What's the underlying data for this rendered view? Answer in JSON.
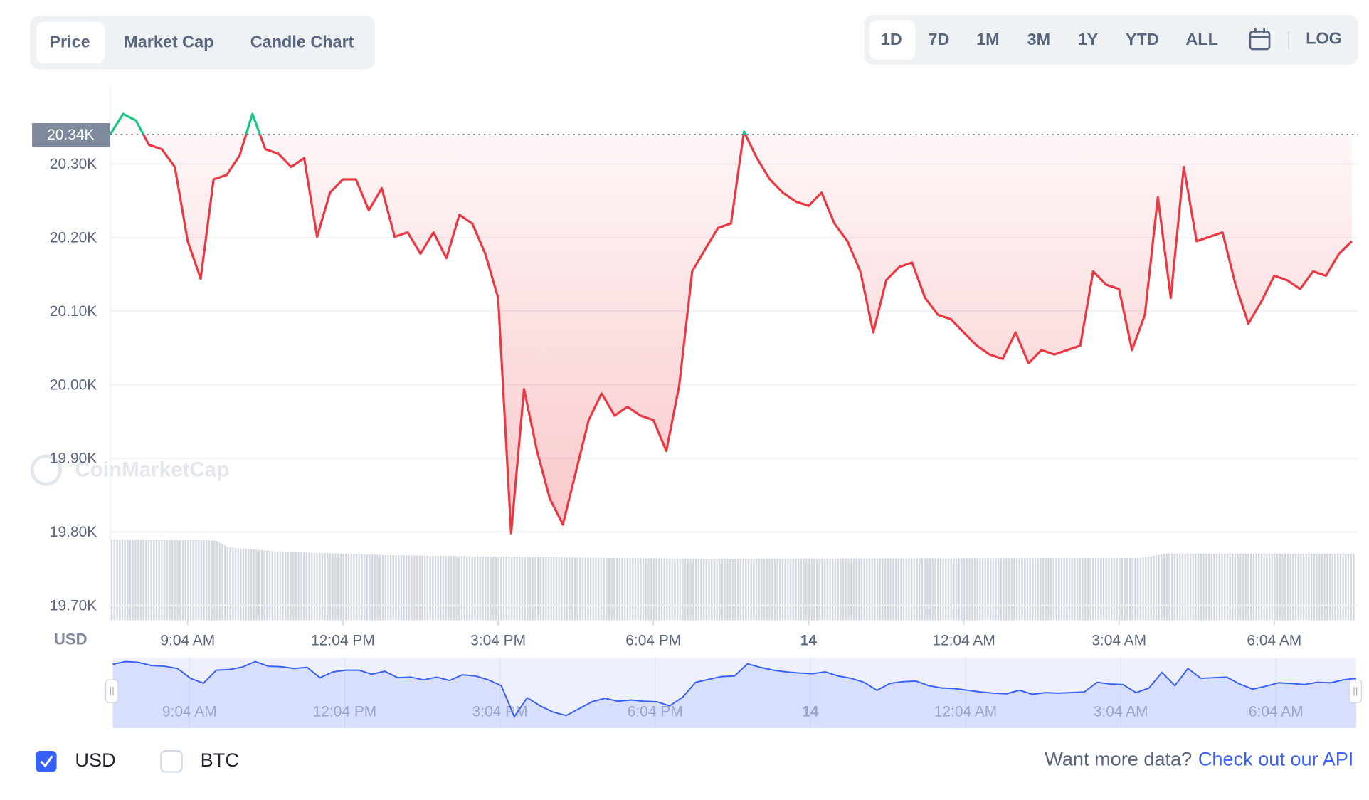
{
  "tabs": [
    "Price",
    "Market Cap",
    "Candle Chart"
  ],
  "ranges": [
    "1D",
    "7D",
    "1M",
    "3M",
    "1Y",
    "YTD",
    "ALL"
  ],
  "log_button": "LOG",
  "watermark": "CoinMarketCap",
  "currencies": [
    "USD",
    "BTC"
  ],
  "footer": {
    "text": "Want more data?",
    "link": "Check out our API"
  },
  "chart_data": {
    "type": "line",
    "y_unit": "USD",
    "categories": [
      null,
      null,
      null,
      null,
      null,
      null,
      "9:04 AM",
      null,
      null,
      null,
      null,
      null,
      null,
      null,
      null,
      null,
      null,
      null,
      "12:04 PM",
      null,
      null,
      null,
      null,
      null,
      null,
      null,
      null,
      null,
      null,
      null,
      "3:04 PM",
      null,
      null,
      null,
      null,
      null,
      null,
      null,
      null,
      null,
      null,
      null,
      "6:04 PM",
      null,
      null,
      null,
      null,
      null,
      null,
      null,
      null,
      null,
      null,
      null,
      "14",
      null,
      null,
      null,
      null,
      null,
      null,
      null,
      null,
      null,
      null,
      null,
      "12:04 AM",
      null,
      null,
      null,
      null,
      null,
      null,
      null,
      null,
      null,
      null,
      null,
      "3:04 AM",
      null,
      null,
      null,
      null,
      null,
      null,
      null,
      null,
      null,
      null,
      null,
      "6:04 AM",
      null,
      null,
      null,
      null,
      null,
      null
    ],
    "values": [
      20340,
      20368,
      20359,
      20326,
      20320,
      20296,
      20195,
      20144,
      20279,
      20285,
      20311,
      20368,
      20320,
      20314,
      20296,
      20308,
      20201,
      20261,
      20279,
      20279,
      20237,
      20267,
      20201,
      20207,
      20178,
      20207,
      20172,
      20231,
      20219,
      20178,
      20118,
      19798,
      19994,
      19910,
      19845,
      19810,
      19881,
      19952,
      19988,
      19958,
      19970,
      19958,
      19952,
      19910,
      19999,
      20154,
      20184,
      20213,
      20219,
      20344,
      20308,
      20279,
      20261,
      20249,
      20243,
      20261,
      20219,
      20195,
      20154,
      20071,
      20142,
      20160,
      20166,
      20118,
      20095,
      20089,
      20071,
      20053,
      20041,
      20035,
      20071,
      20029,
      20047,
      20041,
      20047,
      20053,
      20154,
      20136,
      20130,
      20047,
      20095,
      20255,
      20118,
      20296,
      20195,
      20201,
      20207,
      20136,
      20083,
      20113,
      20148,
      20142,
      20130,
      20154,
      20148,
      20178,
      20195
    ],
    "reference": {
      "value": 20340,
      "label": "20.34K"
    },
    "up_color": "#16c784",
    "down_color": "#ea3943",
    "navigator_color": "#3861fb",
    "ylim": [
      19680,
      20406
    ],
    "yticks": [
      {
        "value": 19700,
        "label": "19.70K"
      },
      {
        "value": 19800,
        "label": "19.80K"
      },
      {
        "value": 19900,
        "label": "19.90K"
      },
      {
        "value": 20000,
        "label": "20.00K"
      },
      {
        "value": 20100,
        "label": "20.10K"
      },
      {
        "value": 20200,
        "label": "20.20K"
      },
      {
        "value": 20300,
        "label": "20.30K"
      }
    ],
    "grid": true
  }
}
